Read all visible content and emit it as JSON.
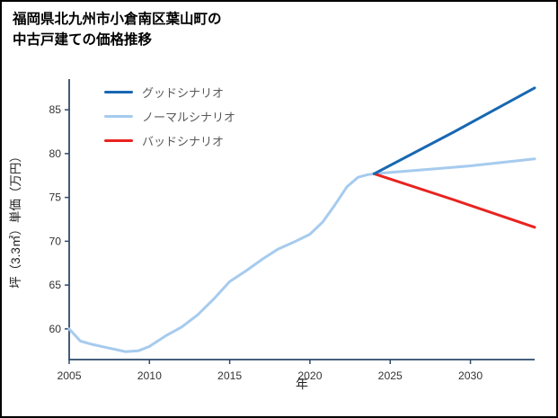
{
  "window": {
    "bg": "#ffffff",
    "border_color": "#000000"
  },
  "title": {
    "line1": "福岡県北九州市小倉南区葉山町の",
    "line2": "中古戸建ての価格推移"
  },
  "chart_data": {
    "type": "line",
    "title": "福岡県北九州市小倉南区葉山町の中古戸建ての価格推移",
    "xlabel": "年",
    "ylabel": "坪（3.3㎡）単価（万円）",
    "xlim": [
      2005,
      2034
    ],
    "ylim": [
      56.5,
      88.5
    ],
    "xticks": [
      2005,
      2010,
      2015,
      2020,
      2025,
      2030
    ],
    "yticks": [
      60,
      65,
      70,
      75,
      80,
      85
    ],
    "grid": false,
    "legend": {
      "position": "top-left"
    },
    "axis_color": "#2e4a6b",
    "tick_label_color": "#333333",
    "draw_order": [
      1,
      2,
      0
    ],
    "series": [
      {
        "name": "グッドシナリオ",
        "color": "#1868b2",
        "width": 3,
        "x": [
          2024,
          2029,
          2034
        ],
        "y": [
          77.7,
          82.5,
          87.5
        ]
      },
      {
        "name": "ノーマルシナリオ",
        "color": "#a6cbee",
        "width": 3,
        "x": [
          2005,
          2005.7,
          2006.5,
          2007.5,
          2008.5,
          2009.3,
          2010,
          2011,
          2012,
          2013,
          2014,
          2015,
          2016,
          2017,
          2018,
          2019,
          2020,
          2020.8,
          2021.5,
          2022.3,
          2023,
          2023.6,
          2024,
          2026,
          2028,
          2030,
          2032,
          2034
        ],
        "y": [
          60.0,
          58.6,
          58.2,
          57.8,
          57.4,
          57.5,
          58.0,
          59.2,
          60.2,
          61.6,
          63.4,
          65.4,
          66.6,
          67.9,
          69.1,
          69.9,
          70.8,
          72.2,
          74.0,
          76.2,
          77.3,
          77.6,
          77.7,
          78.0,
          78.3,
          78.6,
          79.0,
          79.4
        ]
      },
      {
        "name": "バッドシナリオ",
        "color": "#e8231f",
        "width": 3,
        "x": [
          2024,
          2029,
          2034
        ],
        "y": [
          77.7,
          74.7,
          71.6
        ]
      }
    ]
  }
}
